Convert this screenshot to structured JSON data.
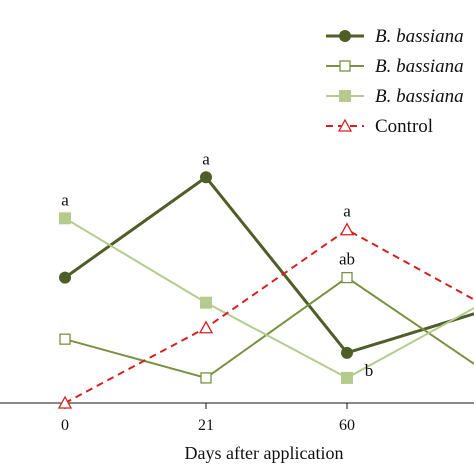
{
  "chart_data": {
    "type": "line",
    "xlabel": "Days after application",
    "x_ticks": [
      {
        "pos": 0,
        "label": "0"
      },
      {
        "pos": 1,
        "label": "21"
      },
      {
        "pos": 2,
        "label": "60"
      }
    ],
    "x_range": [
      0,
      3
    ],
    "y_range": [
      0,
      1
    ],
    "grid": false,
    "legend_position": "top-right",
    "series": [
      {
        "name": "B. bassiana",
        "color": "#4f5e28",
        "marker": "filled-circle",
        "dash": "solid",
        "width": 3,
        "x": [
          0,
          1,
          2,
          3
        ],
        "y": [
          0.55,
          0.99,
          0.22,
          0.41
        ]
      },
      {
        "name": "B. bassiana",
        "color": "#7a9141",
        "marker": "open-square",
        "dash": "solid",
        "width": 2,
        "x": [
          0,
          1,
          2,
          3
        ],
        "y": [
          0.28,
          0.11,
          0.55,
          0.13
        ]
      },
      {
        "name": "B. bassiana",
        "color": "#b5cb8d",
        "marker": "filled-square",
        "dash": "solid",
        "width": 2,
        "x": [
          0,
          1,
          2,
          3
        ],
        "y": [
          0.81,
          0.44,
          0.11,
          0.45
        ]
      },
      {
        "name": "Control",
        "color": "#d62020",
        "marker": "open-triangle",
        "dash": "dashed",
        "width": 2,
        "x": [
          0,
          1,
          2,
          3
        ],
        "y": [
          0.0,
          0.33,
          0.76,
          0.42
        ]
      }
    ],
    "annotations": [
      {
        "text": "a",
        "x": 0,
        "y": 0.81,
        "placement": "above"
      },
      {
        "text": "a",
        "x": 1,
        "y": 0.99,
        "placement": "above"
      },
      {
        "text": "a",
        "x": 2,
        "y": 0.76,
        "placement": "above"
      },
      {
        "text": "ab",
        "x": 2,
        "y": 0.55,
        "placement": "above"
      },
      {
        "text": "b",
        "x": 2,
        "y": 0.11,
        "placement": "right"
      }
    ]
  }
}
